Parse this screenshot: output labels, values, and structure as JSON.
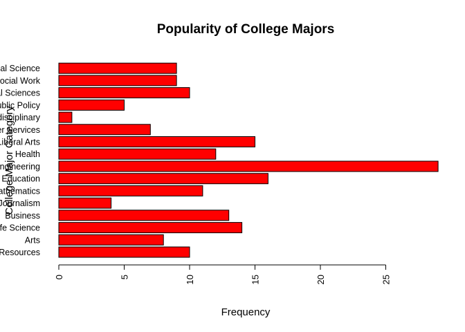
{
  "chart_data": {
    "type": "bar",
    "orientation": "horizontal",
    "title": "Popularity of College Majors",
    "xlabel": "Frequency",
    "ylabel": "College Major Category",
    "categories": [
      "Agriculture & Natural Resources",
      "Arts",
      "Biology & Life Science",
      "Business",
      "Communications & Journalism",
      "Computers & Mathematics",
      "Education",
      "Engineering",
      "Health",
      "Humanities & Liberal Arts",
      "Industrial Arts & Consumer Services",
      "Interdisciplinary",
      "Law & Public Policy",
      "Physical Sciences",
      "Psychology & Social Work",
      "Social Science"
    ],
    "values": [
      10,
      8,
      14,
      13,
      4,
      11,
      16,
      29,
      12,
      15,
      7,
      1,
      5,
      10,
      9,
      9
    ],
    "xlim": [
      0,
      29
    ],
    "xticks": [
      0,
      5,
      10,
      15,
      20,
      25
    ],
    "bar_color": "#ff0000",
    "grid": false
  }
}
